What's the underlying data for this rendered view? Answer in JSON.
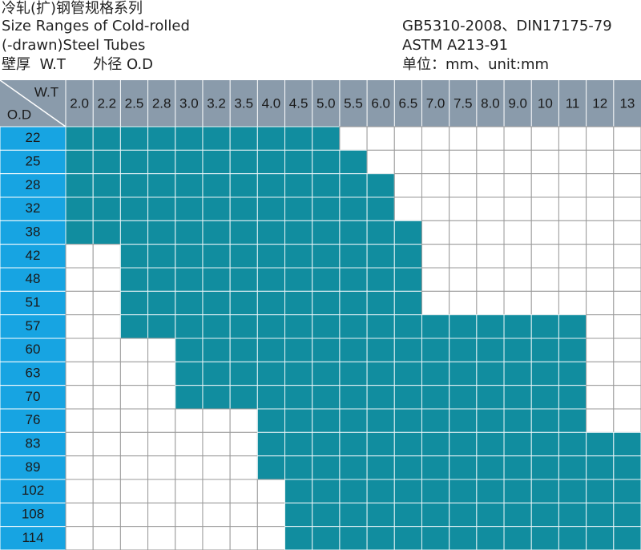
{
  "header": {
    "title_cn": "冷轧(扩)钢管规格系列",
    "title_en_1": "Size Ranges of Cold-rolled",
    "title_en_2": "(-drawn)Steel Tubes",
    "legend": "壁厚  W.T      外径 O.D",
    "standard_1": "GB5310-2008、DIN17175-79",
    "standard_2": "ASTM A213-91",
    "unit": "单位：mm、unit:mm"
  },
  "table": {
    "corner_top": "W.T",
    "corner_bottom": "O.D",
    "columns": [
      "2.0",
      "2.2",
      "2.5",
      "2.8",
      "3.0",
      "3.2",
      "3.5",
      "4.0",
      "4.5",
      "5.0",
      "5.5",
      "6.0",
      "6.5",
      "7.0",
      "7.5",
      "8.0",
      "9.0",
      "10",
      "11",
      "12",
      "13"
    ],
    "rows": [
      {
        "od": "22",
        "filled": [
          true,
          true,
          true,
          true,
          true,
          true,
          true,
          true,
          true,
          true,
          false,
          false,
          false,
          false,
          false,
          false,
          false,
          false,
          false,
          false,
          false
        ]
      },
      {
        "od": "25",
        "filled": [
          true,
          true,
          true,
          true,
          true,
          true,
          true,
          true,
          true,
          true,
          true,
          false,
          false,
          false,
          false,
          false,
          false,
          false,
          false,
          false,
          false
        ]
      },
      {
        "od": "28",
        "filled": [
          true,
          true,
          true,
          true,
          true,
          true,
          true,
          true,
          true,
          true,
          true,
          true,
          false,
          false,
          false,
          false,
          false,
          false,
          false,
          false,
          false
        ]
      },
      {
        "od": "32",
        "filled": [
          true,
          true,
          true,
          true,
          true,
          true,
          true,
          true,
          true,
          true,
          true,
          true,
          false,
          false,
          false,
          false,
          false,
          false,
          false,
          false,
          false
        ]
      },
      {
        "od": "38",
        "filled": [
          true,
          true,
          true,
          true,
          true,
          true,
          true,
          true,
          true,
          true,
          true,
          true,
          true,
          false,
          false,
          false,
          false,
          false,
          false,
          false,
          false
        ]
      },
      {
        "od": "42",
        "filled": [
          false,
          false,
          true,
          true,
          true,
          true,
          true,
          true,
          true,
          true,
          true,
          true,
          true,
          false,
          false,
          false,
          false,
          false,
          false,
          false,
          false
        ]
      },
      {
        "od": "48",
        "filled": [
          false,
          false,
          true,
          true,
          true,
          true,
          true,
          true,
          true,
          true,
          true,
          true,
          true,
          false,
          false,
          false,
          false,
          false,
          false,
          false,
          false
        ]
      },
      {
        "od": "51",
        "filled": [
          false,
          false,
          true,
          true,
          true,
          true,
          true,
          true,
          true,
          true,
          true,
          true,
          true,
          false,
          false,
          false,
          false,
          false,
          false,
          false,
          false
        ]
      },
      {
        "od": "57",
        "filled": [
          false,
          false,
          true,
          true,
          true,
          true,
          true,
          true,
          true,
          true,
          true,
          true,
          true,
          true,
          true,
          true,
          true,
          true,
          true,
          false,
          false
        ]
      },
      {
        "od": "60",
        "filled": [
          false,
          false,
          false,
          false,
          true,
          true,
          true,
          true,
          true,
          true,
          true,
          true,
          true,
          true,
          true,
          true,
          true,
          true,
          true,
          false,
          false
        ]
      },
      {
        "od": "63",
        "filled": [
          false,
          false,
          false,
          false,
          true,
          true,
          true,
          true,
          true,
          true,
          true,
          true,
          true,
          true,
          true,
          true,
          true,
          true,
          true,
          false,
          false
        ]
      },
      {
        "od": "70",
        "filled": [
          false,
          false,
          false,
          false,
          true,
          true,
          true,
          true,
          true,
          true,
          true,
          true,
          true,
          true,
          true,
          true,
          true,
          true,
          true,
          false,
          false
        ]
      },
      {
        "od": "76",
        "filled": [
          false,
          false,
          false,
          false,
          false,
          false,
          false,
          true,
          true,
          true,
          true,
          true,
          true,
          true,
          true,
          true,
          true,
          true,
          true,
          false,
          false
        ]
      },
      {
        "od": "83",
        "filled": [
          false,
          false,
          false,
          false,
          false,
          false,
          false,
          true,
          true,
          true,
          true,
          true,
          true,
          true,
          true,
          true,
          true,
          true,
          true,
          true,
          true
        ]
      },
      {
        "od": "89",
        "filled": [
          false,
          false,
          false,
          false,
          false,
          false,
          false,
          true,
          true,
          true,
          true,
          true,
          true,
          true,
          true,
          true,
          true,
          true,
          true,
          true,
          true
        ]
      },
      {
        "od": "102",
        "filled": [
          false,
          false,
          false,
          false,
          false,
          false,
          false,
          false,
          true,
          true,
          true,
          true,
          true,
          true,
          true,
          true,
          true,
          true,
          true,
          true,
          true
        ]
      },
      {
        "od": "108",
        "filled": [
          false,
          false,
          false,
          false,
          false,
          false,
          false,
          false,
          true,
          true,
          true,
          true,
          true,
          true,
          true,
          true,
          true,
          true,
          true,
          true,
          true
        ]
      },
      {
        "od": "114",
        "filled": [
          false,
          false,
          false,
          false,
          false,
          false,
          false,
          false,
          true,
          true,
          true,
          true,
          true,
          true,
          true,
          true,
          true,
          true,
          true,
          true,
          true
        ]
      }
    ]
  }
}
